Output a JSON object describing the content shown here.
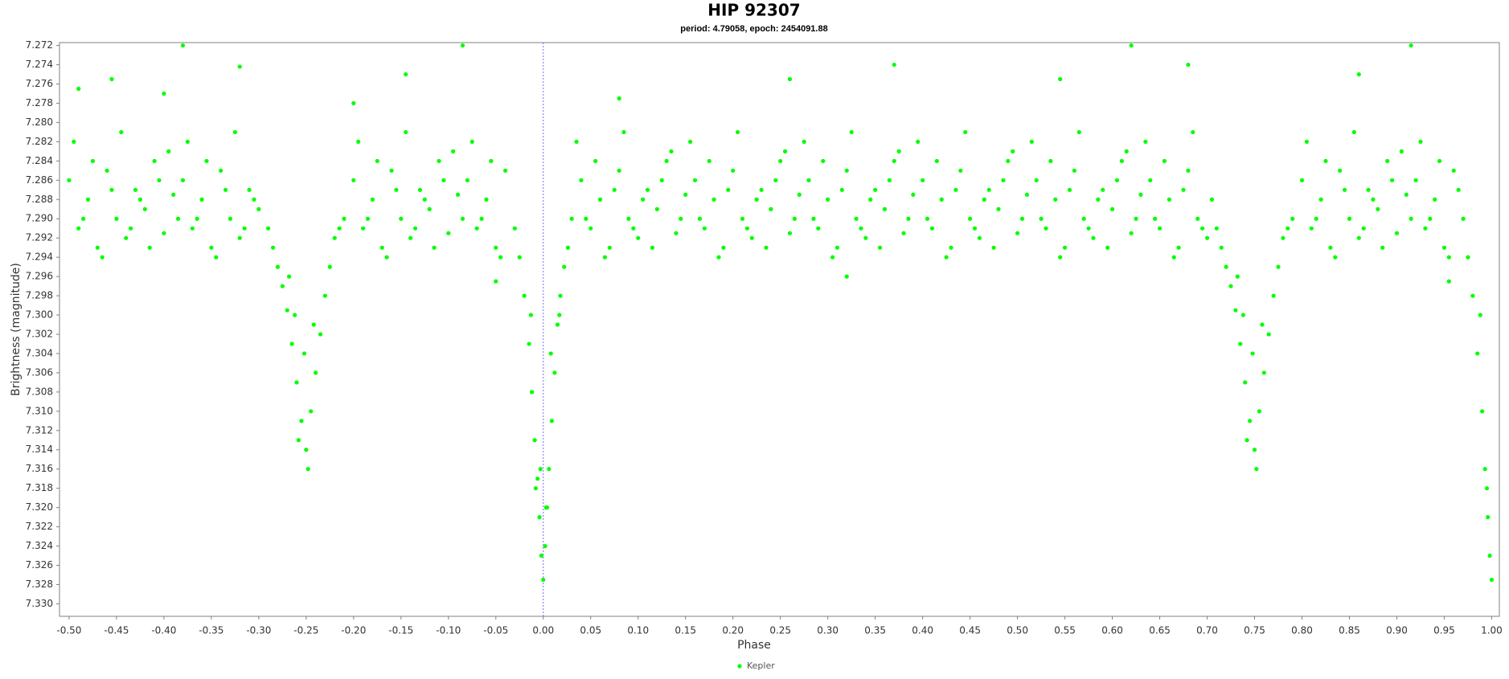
{
  "chart_data": {
    "type": "scatter",
    "title": "HIP 92307",
    "subtitle": "period: 4.79058, epoch: 2454091.88",
    "x_label": "Phase",
    "y_label": "Brightness (magnitude)",
    "xlim": [
      -0.5101,
      1.0081
    ],
    "ylim": [
      7.2717,
      7.3313
    ],
    "y_inverted": true,
    "grid": false,
    "legend": "bottom",
    "vline": 0,
    "vline_color": "#6f6fff",
    "xticks": [
      {
        "value": -0.5,
        "label": "-0.50"
      },
      {
        "value": -0.45,
        "label": "-0.45"
      },
      {
        "value": -0.4,
        "label": "-0.40"
      },
      {
        "value": -0.35,
        "label": "-0.35"
      },
      {
        "value": -0.3,
        "label": "-0.30"
      },
      {
        "value": -0.25,
        "label": "-0.25"
      },
      {
        "value": -0.2,
        "label": "-0.20"
      },
      {
        "value": -0.15,
        "label": "-0.15"
      },
      {
        "value": -0.1,
        "label": "-0.10"
      },
      {
        "value": -0.05,
        "label": "-0.05"
      },
      {
        "value": 0,
        "label": "0.00"
      },
      {
        "value": 0.05,
        "label": "0.05"
      },
      {
        "value": 0.1,
        "label": "0.10"
      },
      {
        "value": 0.15,
        "label": "0.15"
      },
      {
        "value": 0.2,
        "label": "0.20"
      },
      {
        "value": 0.25,
        "label": "0.25"
      },
      {
        "value": 0.3,
        "label": "0.30"
      },
      {
        "value": 0.35,
        "label": "0.35"
      },
      {
        "value": 0.4,
        "label": "0.40"
      },
      {
        "value": 0.45,
        "label": "0.45"
      },
      {
        "value": 0.5,
        "label": "0.50"
      },
      {
        "value": 0.55,
        "label": "0.55"
      },
      {
        "value": 0.6,
        "label": "0.60"
      },
      {
        "value": 0.65,
        "label": "0.65"
      },
      {
        "value": 0.7,
        "label": "0.70"
      },
      {
        "value": 0.75,
        "label": "0.75"
      },
      {
        "value": 0.8,
        "label": "0.80"
      },
      {
        "value": 0.85,
        "label": "0.85"
      },
      {
        "value": 0.9,
        "label": "0.90"
      },
      {
        "value": 0.95,
        "label": "0.95"
      },
      {
        "value": 1,
        "label": "1.00"
      }
    ],
    "yticks": [
      7.272,
      7.274,
      7.276,
      7.278,
      {
        "value": 7.28,
        "label": "7.280"
      },
      7.282,
      7.284,
      7.286,
      7.288,
      {
        "value": 7.29,
        "label": "7.290"
      },
      7.292,
      7.294,
      7.296,
      7.298,
      {
        "value": 7.3,
        "label": "7.300"
      },
      7.302,
      7.304,
      7.306,
      7.308,
      {
        "value": 7.31,
        "label": "7.310"
      },
      7.312,
      7.314,
      7.316,
      7.318,
      {
        "value": 7.32,
        "label": "7.320"
      },
      7.322,
      7.324,
      7.326,
      7.328,
      {
        "value": 7.33,
        "label": "7.330"
      }
    ],
    "series": [
      {
        "name": "Kepler",
        "color": "#00ff00",
        "x": [
          -0.5,
          -0.49,
          -0.48,
          -0.47,
          -0.46,
          -0.45,
          -0.44,
          -0.43,
          -0.42,
          -0.41,
          -0.4,
          -0.39,
          -0.38,
          -0.37,
          -0.36,
          -0.35,
          -0.34,
          -0.33,
          -0.32,
          -0.31,
          -0.3,
          -0.495,
          -0.485,
          -0.475,
          -0.465,
          -0.455,
          -0.445,
          -0.435,
          -0.425,
          -0.415,
          -0.405,
          -0.395,
          -0.385,
          -0.375,
          -0.365,
          -0.355,
          -0.345,
          -0.335,
          -0.325,
          -0.315,
          -0.305,
          -0.49,
          -0.455,
          -0.4,
          -0.38,
          -0.32,
          -0.29,
          -0.285,
          -0.28,
          -0.275,
          -0.27,
          -0.265,
          -0.26,
          -0.255,
          -0.25,
          -0.248,
          -0.245,
          -0.24,
          -0.235,
          -0.23,
          -0.225,
          -0.22,
          -0.215,
          -0.21,
          -0.262,
          -0.252,
          -0.242,
          -0.258,
          -0.268,
          -0.2,
          -0.19,
          -0.18,
          -0.17,
          -0.16,
          -0.15,
          -0.14,
          -0.13,
          -0.12,
          -0.11,
          -0.1,
          -0.09,
          -0.08,
          -0.07,
          -0.06,
          -0.05,
          -0.04,
          -0.195,
          -0.185,
          -0.175,
          -0.165,
          -0.155,
          -0.145,
          -0.135,
          -0.125,
          -0.115,
          -0.105,
          -0.095,
          -0.085,
          -0.075,
          -0.065,
          -0.055,
          -0.045,
          -0.2,
          -0.145,
          -0.085,
          -0.05,
          -0.03,
          -0.025,
          -0.02,
          -0.015,
          -0.012,
          -0.009,
          -0.006,
          -0.004,
          -0.002,
          0,
          0.002,
          0.004,
          0.006,
          0.009,
          0.012,
          0.015,
          0.018,
          0.022,
          0.026,
          0.03,
          -0.008,
          -0.003,
          0.003,
          0.008,
          0.017,
          -0.013,
          0.04,
          0.05,
          0.06,
          0.07,
          0.08,
          0.09,
          0.1,
          0.11,
          0.12,
          0.13,
          0.14,
          0.15,
          0.16,
          0.17,
          0.18,
          0.19,
          0.2,
          0.21,
          0.22,
          0.23,
          0.24,
          0.25,
          0.26,
          0.27,
          0.28,
          0.29,
          0.3,
          0.31,
          0.32,
          0.33,
          0.34,
          0.35,
          0.36,
          0.37,
          0.38,
          0.39,
          0.4,
          0.41,
          0.42,
          0.43,
          0.44,
          0.45,
          0.46,
          0.47,
          0.48,
          0.49,
          0.5,
          0.51,
          0.52,
          0.53,
          0.54,
          0.55,
          0.56,
          0.57,
          0.58,
          0.59,
          0.6,
          0.61,
          0.62,
          0.63,
          0.64,
          0.65,
          0.66,
          0.67,
          0.68,
          0.69,
          0.7,
          0.035,
          0.045,
          0.055,
          0.065,
          0.075,
          0.085,
          0.095,
          0.105,
          0.115,
          0.125,
          0.135,
          0.145,
          0.155,
          0.165,
          0.175,
          0.185,
          0.195,
          0.205,
          0.215,
          0.225,
          0.235,
          0.245,
          0.255,
          0.265,
          0.275,
          0.285,
          0.295,
          0.305,
          0.315,
          0.325,
          0.335,
          0.345,
          0.355,
          0.365,
          0.375,
          0.385,
          0.395,
          0.405,
          0.415,
          0.425,
          0.435,
          0.445,
          0.455,
          0.465,
          0.475,
          0.485,
          0.495,
          0.505,
          0.515,
          0.525,
          0.535,
          0.545,
          0.555,
          0.565,
          0.575,
          0.585,
          0.595,
          0.605,
          0.615,
          0.625,
          0.635,
          0.645,
          0.655,
          0.665,
          0.675,
          0.685,
          0.695,
          0.705,
          0.08,
          0.26,
          0.37,
          0.545,
          0.62,
          0.68,
          0.32,
          0.71,
          0.715,
          0.72,
          0.725,
          0.73,
          0.735,
          0.74,
          0.745,
          0.75,
          0.752,
          0.755,
          0.76,
          0.765,
          0.77,
          0.775,
          0.78,
          0.785,
          0.79,
          0.738,
          0.748,
          0.758,
          0.742,
          0.732,
          0.8,
          0.81,
          0.82,
          0.83,
          0.84,
          0.85,
          0.86,
          0.87,
          0.88,
          0.89,
          0.9,
          0.91,
          0.92,
          0.93,
          0.94,
          0.95,
          0.96,
          0.805,
          0.815,
          0.825,
          0.835,
          0.845,
          0.855,
          0.865,
          0.875,
          0.885,
          0.895,
          0.905,
          0.915,
          0.925,
          0.935,
          0.945,
          0.955,
          0.965,
          0.86,
          0.915,
          0.955,
          0.97,
          0.975,
          0.98,
          0.985,
          0.99,
          0.993,
          0.996,
          0.998,
          1,
          0.988,
          0.995
        ],
        "y": [
          7.286,
          7.291,
          7.288,
          7.293,
          7.285,
          7.29,
          7.292,
          7.287,
          7.289,
          7.284,
          7.2915,
          7.2875,
          7.286,
          7.291,
          7.288,
          7.293,
          7.285,
          7.29,
          7.292,
          7.287,
          7.289,
          7.282,
          7.29,
          7.284,
          7.294,
          7.287,
          7.281,
          7.291,
          7.288,
          7.293,
          7.286,
          7.283,
          7.29,
          7.282,
          7.29,
          7.284,
          7.294,
          7.287,
          7.281,
          7.291,
          7.288,
          7.2765,
          7.2755,
          7.277,
          7.272,
          7.2742,
          7.291,
          7.293,
          7.295,
          7.297,
          7.2995,
          7.303,
          7.307,
          7.311,
          7.314,
          7.316,
          7.31,
          7.306,
          7.302,
          7.298,
          7.295,
          7.292,
          7.291,
          7.29,
          7.3,
          7.304,
          7.301,
          7.313,
          7.296,
          7.286,
          7.291,
          7.288,
          7.293,
          7.285,
          7.29,
          7.292,
          7.287,
          7.289,
          7.284,
          7.2915,
          7.2875,
          7.286,
          7.291,
          7.288,
          7.293,
          7.285,
          7.282,
          7.29,
          7.284,
          7.294,
          7.287,
          7.281,
          7.291,
          7.288,
          7.293,
          7.286,
          7.283,
          7.29,
          7.282,
          7.29,
          7.284,
          7.294,
          7.278,
          7.275,
          7.272,
          7.2965,
          7.291,
          7.294,
          7.298,
          7.303,
          7.308,
          7.313,
          7.317,
          7.321,
          7.325,
          7.3275,
          7.324,
          7.32,
          7.316,
          7.311,
          7.306,
          7.301,
          7.298,
          7.295,
          7.293,
          7.29,
          7.318,
          7.316,
          7.32,
          7.304,
          7.3,
          7.3,
          7.286,
          7.291,
          7.288,
          7.293,
          7.285,
          7.29,
          7.292,
          7.287,
          7.289,
          7.284,
          7.2915,
          7.2875,
          7.286,
          7.291,
          7.288,
          7.293,
          7.285,
          7.29,
          7.292,
          7.287,
          7.289,
          7.284,
          7.2915,
          7.2875,
          7.286,
          7.291,
          7.288,
          7.293,
          7.285,
          7.29,
          7.292,
          7.287,
          7.289,
          7.284,
          7.2915,
          7.2875,
          7.286,
          7.291,
          7.288,
          7.293,
          7.285,
          7.29,
          7.292,
          7.287,
          7.289,
          7.284,
          7.2915,
          7.2875,
          7.286,
          7.291,
          7.288,
          7.293,
          7.285,
          7.29,
          7.292,
          7.287,
          7.289,
          7.284,
          7.2915,
          7.2875,
          7.286,
          7.291,
          7.288,
          7.293,
          7.285,
          7.29,
          7.292,
          7.282,
          7.29,
          7.284,
          7.294,
          7.287,
          7.281,
          7.291,
          7.288,
          7.293,
          7.286,
          7.283,
          7.29,
          7.282,
          7.29,
          7.284,
          7.294,
          7.287,
          7.281,
          7.291,
          7.288,
          7.293,
          7.286,
          7.283,
          7.29,
          7.282,
          7.29,
          7.284,
          7.294,
          7.287,
          7.281,
          7.291,
          7.288,
          7.293,
          7.286,
          7.283,
          7.29,
          7.282,
          7.29,
          7.284,
          7.294,
          7.287,
          7.281,
          7.291,
          7.288,
          7.293,
          7.286,
          7.283,
          7.29,
          7.282,
          7.29,
          7.284,
          7.294,
          7.287,
          7.281,
          7.291,
          7.288,
          7.293,
          7.286,
          7.283,
          7.29,
          7.282,
          7.29,
          7.284,
          7.294,
          7.287,
          7.281,
          7.291,
          7.288,
          7.2775,
          7.2755,
          7.274,
          7.2755,
          7.272,
          7.274,
          7.296,
          7.291,
          7.293,
          7.295,
          7.297,
          7.2995,
          7.303,
          7.307,
          7.311,
          7.314,
          7.316,
          7.31,
          7.306,
          7.302,
          7.298,
          7.295,
          7.292,
          7.291,
          7.29,
          7.3,
          7.304,
          7.301,
          7.313,
          7.296,
          7.286,
          7.291,
          7.288,
          7.293,
          7.285,
          7.29,
          7.292,
          7.287,
          7.289,
          7.284,
          7.2915,
          7.2875,
          7.286,
          7.291,
          7.288,
          7.293,
          7.285,
          7.282,
          7.29,
          7.284,
          7.294,
          7.287,
          7.281,
          7.291,
          7.288,
          7.293,
          7.286,
          7.283,
          7.29,
          7.282,
          7.29,
          7.284,
          7.294,
          7.287,
          7.275,
          7.272,
          7.2965,
          7.29,
          7.294,
          7.298,
          7.304,
          7.31,
          7.316,
          7.321,
          7.325,
          7.3275,
          7.3,
          7.318
        ]
      }
    ]
  }
}
